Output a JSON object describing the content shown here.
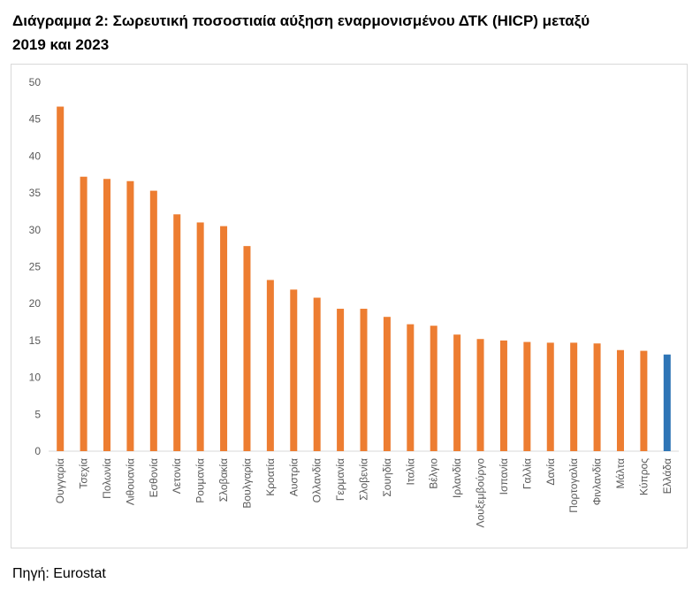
{
  "title": "Διάγραμμα 2: Σωρευτική ποσοστιαία αύξηση εναρμονισμένου ΔΤΚ (HICP)  μεταξύ\n2019 και 2023",
  "source": "Πηγή: Eurostat",
  "colors": {
    "default_bar": "#ED7D31",
    "highlight_bar": "#2E75B6",
    "axis": "#d9d9d9",
    "tick_text": "#595959"
  },
  "chart_data": {
    "type": "bar",
    "title": "Διάγραμμα 2: Σωρευτική ποσοστιαία αύξηση εναρμονισμένου ΔΤΚ (HICP)  μεταξύ 2019 και 2023",
    "xlabel": "",
    "ylabel": "",
    "ylim": [
      0,
      50
    ],
    "yticks": [
      0,
      5,
      10,
      15,
      20,
      25,
      30,
      35,
      40,
      45,
      50
    ],
    "grid": false,
    "legend": "none",
    "highlight_category": "Ελλάδα",
    "categories": [
      "Ουγγαρία",
      "Τσεχία",
      "Πολωνία",
      "Λιθουανία",
      "Εσθονία",
      "Λετονία",
      "Ρουμανία",
      "Σλοβακία",
      "Βουλγαρία",
      "Κροατία",
      "Αυστρία",
      "Ολλανδία",
      "Γερμανία",
      "Σλοβενία",
      "Σουηδία",
      "Ιταλία",
      "Βέλγιο",
      "Ιρλανδία",
      "Λουξεμβούργο",
      "Ισπανία",
      "Γαλλία",
      "Δανία",
      "Πορτογαλία",
      "Φινλανδία",
      "Μάλτα",
      "Κύπρος",
      "Ελλάδα"
    ],
    "values": [
      46.7,
      37.2,
      36.9,
      36.6,
      35.3,
      32.1,
      31.0,
      30.5,
      27.8,
      23.2,
      21.9,
      20.8,
      19.3,
      19.3,
      18.2,
      17.2,
      17.0,
      15.8,
      15.2,
      15.0,
      14.8,
      14.7,
      14.7,
      14.6,
      13.7,
      13.6,
      13.1
    ]
  }
}
